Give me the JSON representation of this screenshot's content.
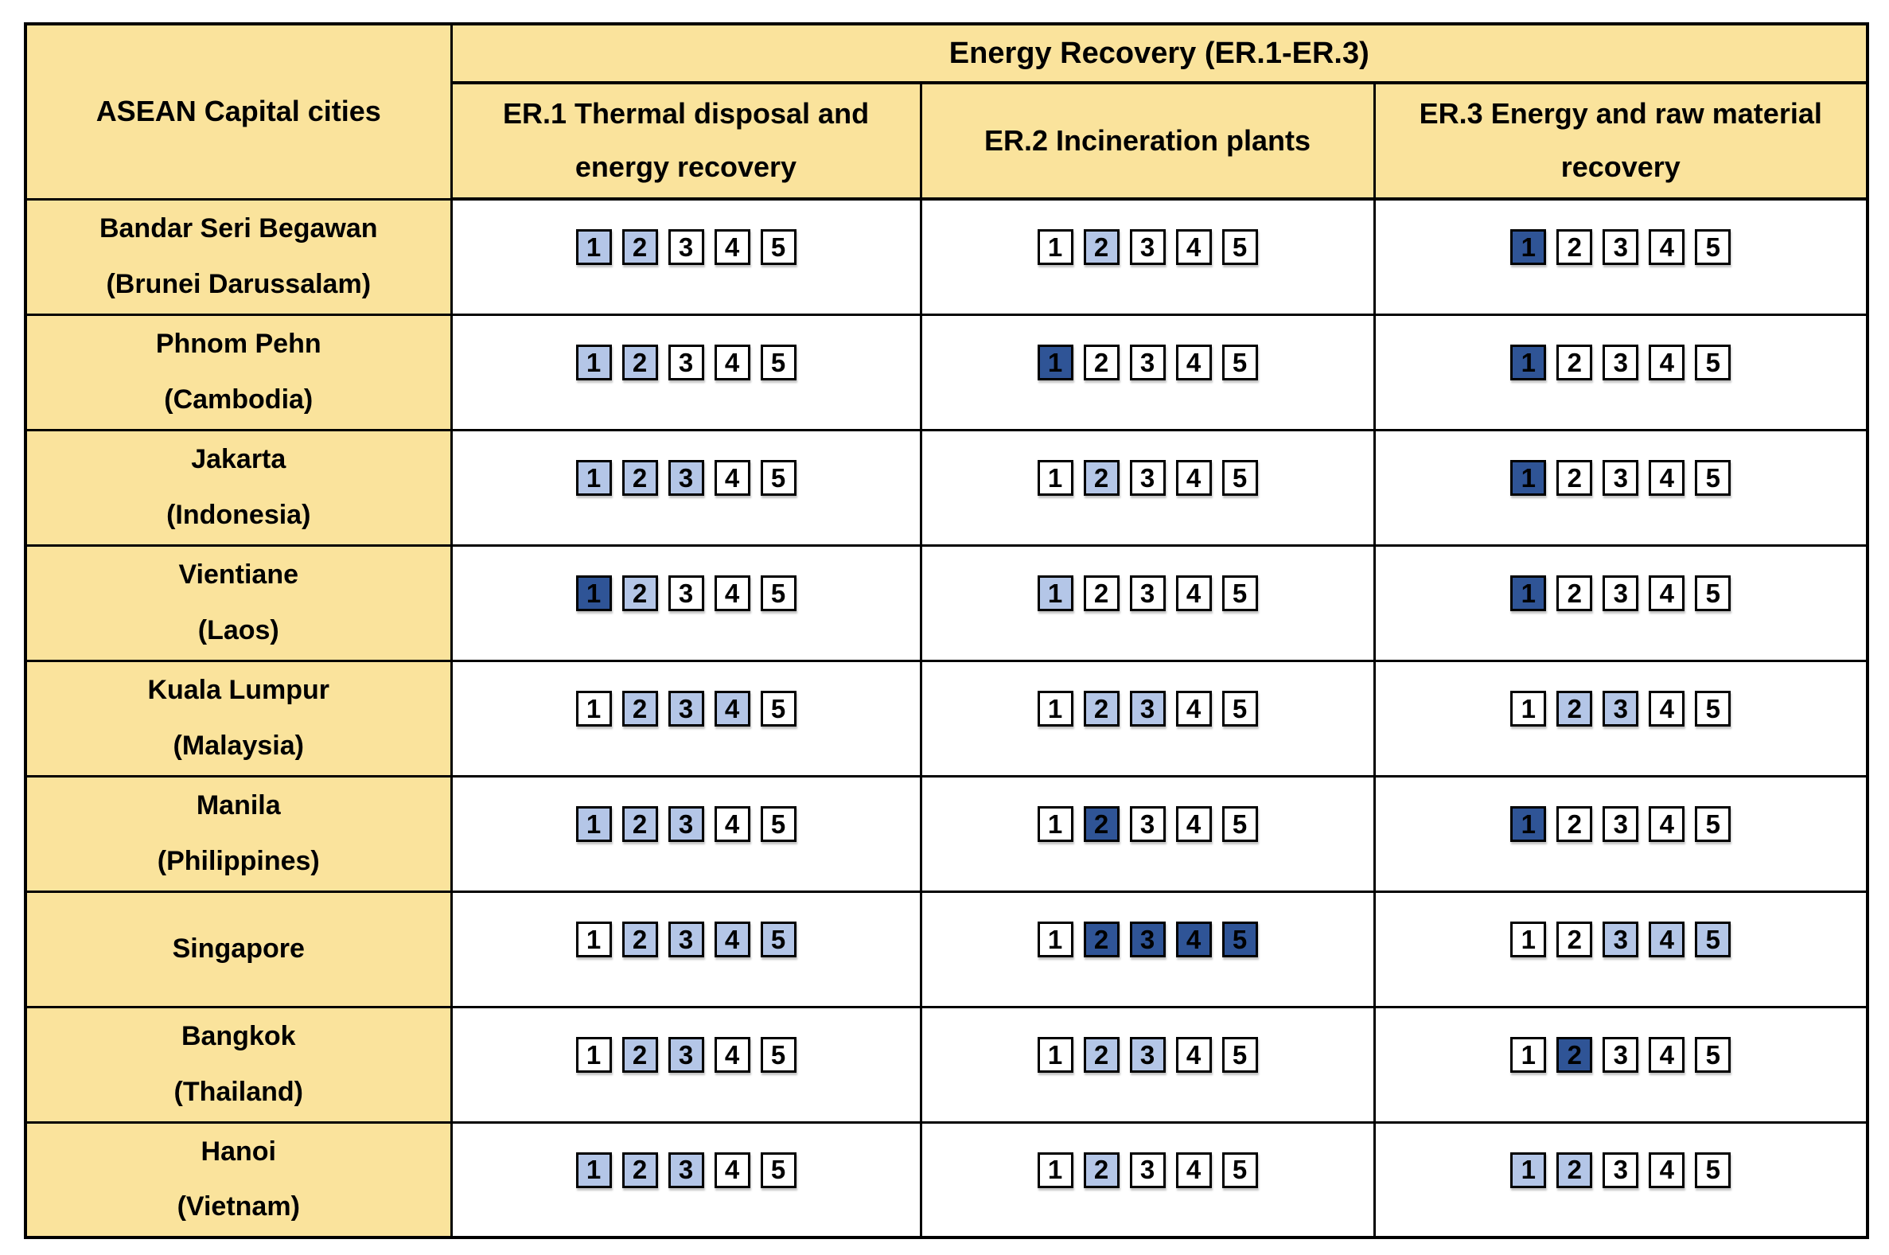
{
  "colors": {
    "header_bg": "#FAE39C",
    "box_light": "#B4C6E7",
    "box_dark": "#2F5496",
    "box_empty": "#FFFFFF",
    "border": "#000000",
    "text": "#000000"
  },
  "chart_data": {
    "type": "table",
    "title": "Energy Recovery (ER.1-ER.3)",
    "row_header": "ASEAN Capital cities",
    "columns": [
      "ER.1 Thermal disposal and energy recovery",
      "ER.2 Incineration plants",
      "ER.3 Energy and raw material recovery"
    ],
    "scale": [
      1,
      2,
      3,
      4,
      5
    ],
    "fill_levels": [
      "none",
      "light",
      "dark"
    ],
    "rows": [
      {
        "city": "Bandar Seri Begawan",
        "country": "(Brunei Darussalam)",
        "er1": [
          "light",
          "light",
          "none",
          "none",
          "none"
        ],
        "er2": [
          "none",
          "light",
          "none",
          "none",
          "none"
        ],
        "er3": [
          "dark",
          "none",
          "none",
          "none",
          "none"
        ]
      },
      {
        "city": "Phnom Pehn",
        "country": "(Cambodia)",
        "er1": [
          "light",
          "light",
          "none",
          "none",
          "none"
        ],
        "er2": [
          "dark",
          "none",
          "none",
          "none",
          "none"
        ],
        "er3": [
          "dark",
          "none",
          "none",
          "none",
          "none"
        ]
      },
      {
        "city": "Jakarta",
        "country": "(Indonesia)",
        "er1": [
          "light",
          "light",
          "light",
          "none",
          "none"
        ],
        "er2": [
          "none",
          "light",
          "none",
          "none",
          "none"
        ],
        "er3": [
          "dark",
          "none",
          "none",
          "none",
          "none"
        ]
      },
      {
        "city": "Vientiane",
        "country": "(Laos)",
        "er1": [
          "dark",
          "light",
          "none",
          "none",
          "none"
        ],
        "er2": [
          "light",
          "none",
          "none",
          "none",
          "none"
        ],
        "er3": [
          "dark",
          "none",
          "none",
          "none",
          "none"
        ]
      },
      {
        "city": "Kuala Lumpur",
        "country": "(Malaysia)",
        "er1": [
          "none",
          "light",
          "light",
          "light",
          "none"
        ],
        "er2": [
          "none",
          "light",
          "light",
          "none",
          "none"
        ],
        "er3": [
          "none",
          "light",
          "light",
          "none",
          "none"
        ]
      },
      {
        "city": "Manila",
        "country": "(Philippines)",
        "er1": [
          "light",
          "light",
          "light",
          "none",
          "none"
        ],
        "er2": [
          "none",
          "dark",
          "none",
          "none",
          "none"
        ],
        "er3": [
          "dark",
          "none",
          "none",
          "none",
          "none"
        ]
      },
      {
        "city": "Singapore",
        "country": "",
        "er1": [
          "none",
          "light",
          "light",
          "light",
          "light"
        ],
        "er2": [
          "none",
          "dark",
          "dark",
          "dark",
          "dark"
        ],
        "er3": [
          "none",
          "none",
          "light",
          "light",
          "light"
        ]
      },
      {
        "city": "Bangkok",
        "country": "(Thailand)",
        "er1": [
          "none",
          "light",
          "light",
          "none",
          "none"
        ],
        "er2": [
          "none",
          "light",
          "light",
          "none",
          "none"
        ],
        "er3": [
          "none",
          "dark",
          "none",
          "none",
          "none"
        ]
      },
      {
        "city": "Hanoi",
        "country": "(Vietnam)",
        "er1": [
          "light",
          "light",
          "light",
          "none",
          "none"
        ],
        "er2": [
          "none",
          "light",
          "none",
          "none",
          "none"
        ],
        "er3": [
          "light",
          "light",
          "none",
          "none",
          "none"
        ]
      }
    ]
  }
}
